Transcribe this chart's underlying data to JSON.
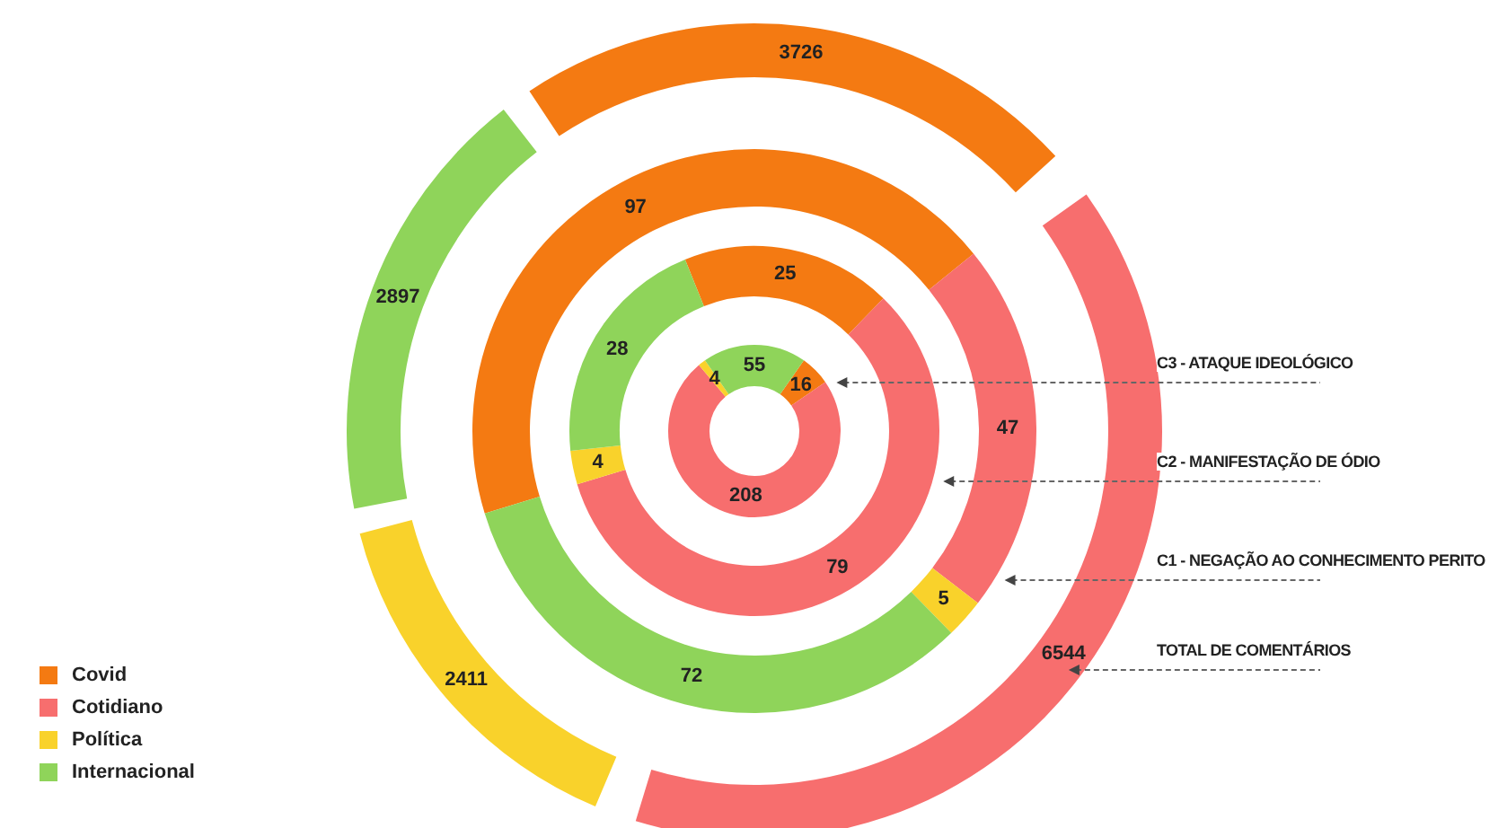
{
  "chart_data": {
    "type": "donut",
    "categories": [
      "Covid",
      "Cotidiano",
      "Política",
      "Internacional"
    ],
    "colors": [
      "#f47a12",
      "#f76e6e",
      "#f9d22b",
      "#8fd45a"
    ],
    "series": [
      {
        "name": "TOTAL DE COMENTÁRIOS",
        "values": [
          3726,
          6544,
          2411,
          2897
        ]
      },
      {
        "name": "C1 - NEGAÇÃO AO CONHECIMENTO PERITO",
        "values": [
          97,
          47,
          5,
          72
        ]
      },
      {
        "name": "C2 - MANIFESTAÇÃO DE ÓDIO",
        "values": [
          25,
          79,
          4,
          28
        ]
      },
      {
        "name": "C3 - ATAQUE IDEOLÓGICO",
        "values": [
          16,
          208,
          4,
          55
        ]
      }
    ],
    "data_labels": true,
    "legend": "bottom left"
  }
}
